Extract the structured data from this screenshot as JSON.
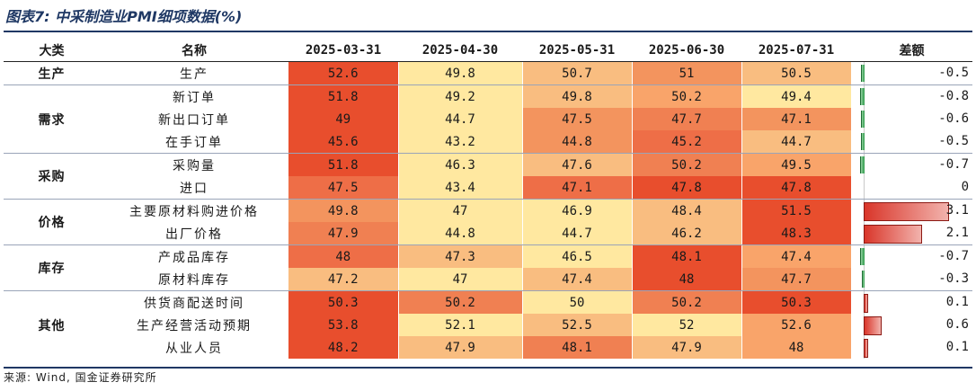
{
  "title": "图表7: 中采制造业PMI细项数据(%)",
  "headers": {
    "category": "大类",
    "name": "名称",
    "dates": [
      "2025-03-31",
      "2025-04-30",
      "2025-05-31",
      "2025-06-30",
      "2025-07-31"
    ],
    "diff": "差额"
  },
  "categories": [
    "生产",
    "需求",
    "采购",
    "价格",
    "库存",
    "其他"
  ],
  "rows": [
    {
      "name": "生产",
      "values": [
        "52.6",
        "49.8",
        "50.7",
        "51",
        "50.5"
      ],
      "diff": "-0.5"
    },
    {
      "name": "新订单",
      "values": [
        "51.8",
        "49.2",
        "49.8",
        "50.2",
        "49.4"
      ],
      "diff": "-0.8"
    },
    {
      "name": "新出口订单",
      "values": [
        "49",
        "44.7",
        "47.5",
        "47.7",
        "47.1"
      ],
      "diff": "-0.6"
    },
    {
      "name": "在手订单",
      "values": [
        "45.6",
        "43.2",
        "44.8",
        "45.2",
        "44.7"
      ],
      "diff": "-0.5"
    },
    {
      "name": "采购量",
      "values": [
        "51.8",
        "46.3",
        "47.6",
        "50.2",
        "49.5"
      ],
      "diff": "-0.7"
    },
    {
      "name": "进口",
      "values": [
        "47.5",
        "43.4",
        "47.1",
        "47.8",
        "47.8"
      ],
      "diff": "0"
    },
    {
      "name": "主要原材料购进价格",
      "values": [
        "49.8",
        "47",
        "46.9",
        "48.4",
        "51.5"
      ],
      "diff": "3.1"
    },
    {
      "name": "出厂价格",
      "values": [
        "47.9",
        "44.8",
        "44.7",
        "46.2",
        "48.3"
      ],
      "diff": "2.1"
    },
    {
      "name": "产成品库存",
      "values": [
        "48",
        "47.3",
        "46.5",
        "48.1",
        "47.4"
      ],
      "diff": "-0.7"
    },
    {
      "name": "原材料库存",
      "values": [
        "47.2",
        "47",
        "47.4",
        "48",
        "47.7"
      ],
      "diff": "-0.3"
    },
    {
      "name": "供货商配送时间",
      "values": [
        "50.3",
        "50.2",
        "50",
        "50.2",
        "50.3"
      ],
      "diff": "0.1"
    },
    {
      "name": "生产经营活动预期",
      "values": [
        "53.8",
        "52.1",
        "52.5",
        "52",
        "52.6"
      ],
      "diff": "0.6"
    },
    {
      "name": "从业人员",
      "values": [
        "48.2",
        "47.9",
        "48.1",
        "47.9",
        "48"
      ],
      "diff": "0.1"
    }
  ],
  "cell_colors": [
    [
      "#e84e2d",
      "#ffe8a0",
      "#f9bd80",
      "#f3945e",
      "#f9bd80"
    ],
    [
      "#e84e2d",
      "#ffe8a0",
      "#f9bd80",
      "#f9a46a",
      "#ffe8a0"
    ],
    [
      "#e84e2d",
      "#ffe8a0",
      "#f3945e",
      "#f08052",
      "#f3945e"
    ],
    [
      "#e84e2d",
      "#ffe8a0",
      "#f3945e",
      "#ee6e47",
      "#f9bd80"
    ],
    [
      "#e84e2d",
      "#ffe8a0",
      "#f9bd80",
      "#f08052",
      "#f9a46a"
    ],
    [
      "#ee6e47",
      "#ffe8a0",
      "#ee6e47",
      "#e84e2d",
      "#e84e2d"
    ],
    [
      "#f3945e",
      "#ffe8a0",
      "#ffe8a0",
      "#f9bd80",
      "#e84e2d"
    ],
    [
      "#f08052",
      "#ffe8a0",
      "#ffe8a0",
      "#f9bd80",
      "#e84e2d"
    ],
    [
      "#ee6e47",
      "#f9bd80",
      "#ffe8a0",
      "#e84e2d",
      "#f9a46a"
    ],
    [
      "#f9bd80",
      "#ffe8a0",
      "#f9bd80",
      "#e84e2d",
      "#f3945e"
    ],
    [
      "#e84e2d",
      "#f08052",
      "#ffe8a0",
      "#f08052",
      "#e84e2d"
    ],
    [
      "#e84e2d",
      "#ffe8a0",
      "#f9bd80",
      "#ffe8a0",
      "#f9a46a"
    ],
    [
      "#e84e2d",
      "#f9bd80",
      "#f08052",
      "#f9bd80",
      "#f9a46a"
    ]
  ],
  "source": "来源: Wind, 国金证券研究所"
}
